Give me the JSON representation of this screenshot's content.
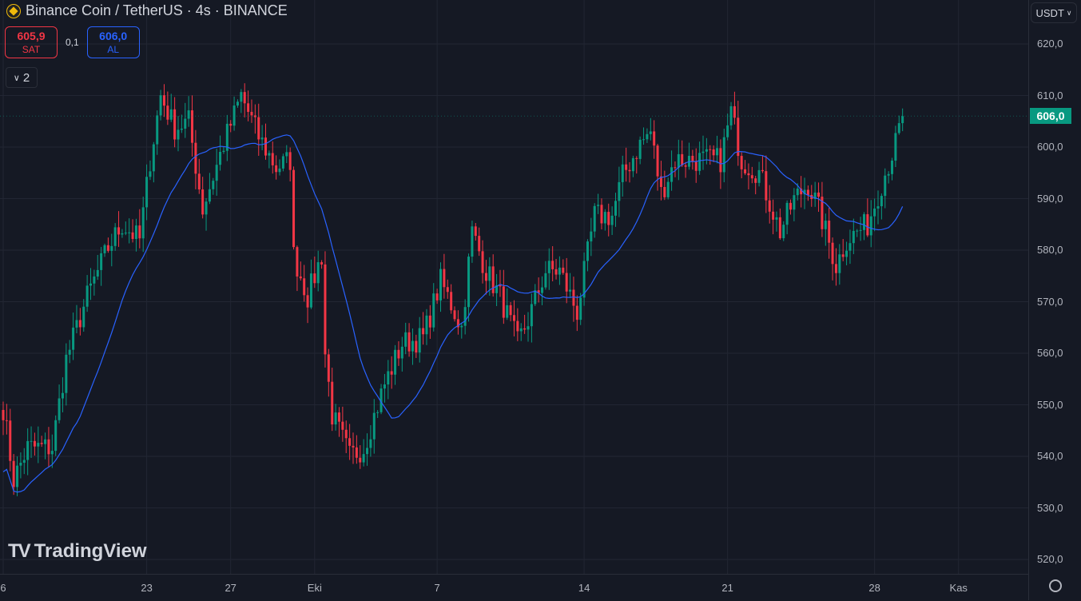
{
  "header": {
    "title": "Binance Coin / TetherUS · 4s · BINANCE",
    "sell_price": "605,9",
    "sell_label": "SAT",
    "spread": "0,1",
    "buy_price": "606,0",
    "buy_label": "AL",
    "indicators_count": "2"
  },
  "axis": {
    "currency": "USDT",
    "last_price_label": "606,0"
  },
  "logo": {
    "text": "TradingView",
    "mark": "17"
  },
  "colors": {
    "up": "#089981",
    "down": "#f23645",
    "ma": "#2962ff",
    "grid": "#222633"
  },
  "chart_data": {
    "type": "candlestick",
    "title": "Binance Coin / TetherUS · 4s · BINANCE",
    "interval": "4h",
    "ylim": [
      517,
      623
    ],
    "yticks": [
      620,
      610,
      600,
      590,
      580,
      570,
      560,
      550,
      540,
      530,
      520
    ],
    "ytick_labels": [
      "620,0",
      "610,0",
      "600,0",
      "590,0",
      "580,0",
      "570,0",
      "560,0",
      "550,0",
      "540,0",
      "530,0",
      "520,0"
    ],
    "xticks": [
      {
        "candle": 0,
        "label": "6"
      },
      {
        "candle": 41,
        "label": "23"
      },
      {
        "candle": 65,
        "label": "27"
      },
      {
        "candle": 89,
        "label": "Eki"
      },
      {
        "candle": 124,
        "label": "7"
      },
      {
        "candle": 166,
        "label": "14"
      },
      {
        "candle": 207,
        "label": "21"
      },
      {
        "candle": 249,
        "label": "28"
      },
      {
        "candle": 273,
        "label": "Kas"
      }
    ],
    "candle_count": 258,
    "close_path": [
      [
        0,
        549.5
      ],
      [
        3,
        535.5
      ],
      [
        7,
        541.7
      ],
      [
        14,
        541.7
      ],
      [
        18,
        558.8
      ],
      [
        24,
        571
      ],
      [
        30,
        580.5
      ],
      [
        34,
        585
      ],
      [
        39,
        582
      ],
      [
        42,
        597.5
      ],
      [
        45,
        610
      ],
      [
        49,
        603.7
      ],
      [
        53,
        605
      ],
      [
        57,
        588
      ],
      [
        63,
        600.6
      ],
      [
        68,
        610
      ],
      [
        73,
        602
      ],
      [
        78,
        596
      ],
      [
        82,
        597.5
      ],
      [
        83,
        579
      ],
      [
        87,
        571
      ],
      [
        91,
        579
      ],
      [
        92,
        560
      ],
      [
        94,
        548
      ],
      [
        99,
        540
      ],
      [
        103,
        541.7
      ],
      [
        109,
        554
      ],
      [
        114,
        561.9
      ],
      [
        120,
        563
      ],
      [
        125,
        574
      ],
      [
        131,
        565
      ],
      [
        134,
        583.6
      ],
      [
        138,
        576
      ],
      [
        142,
        571
      ],
      [
        147,
        562
      ],
      [
        150,
        566.5
      ],
      [
        155,
        576
      ],
      [
        159,
        576
      ],
      [
        164,
        568
      ],
      [
        169,
        586.7
      ],
      [
        174,
        586.7
      ],
      [
        177,
        594.4
      ],
      [
        182,
        600.6
      ],
      [
        185,
        603
      ],
      [
        188,
        591
      ],
      [
        192,
        597.5
      ],
      [
        198,
        597.5
      ],
      [
        205,
        597.5
      ],
      [
        208,
        606.8
      ],
      [
        211,
        597.5
      ],
      [
        216,
        595
      ],
      [
        222,
        583.6
      ],
      [
        226,
        589.8
      ],
      [
        230,
        592.9
      ],
      [
        233,
        588
      ],
      [
        238,
        577
      ],
      [
        241,
        582
      ],
      [
        247,
        585
      ],
      [
        251,
        593
      ],
      [
        255,
        600.6
      ],
      [
        257,
        605.9
      ]
    ],
    "last_close": 606.0,
    "moving_average": {
      "name": "MA",
      "period": 20
    }
  }
}
